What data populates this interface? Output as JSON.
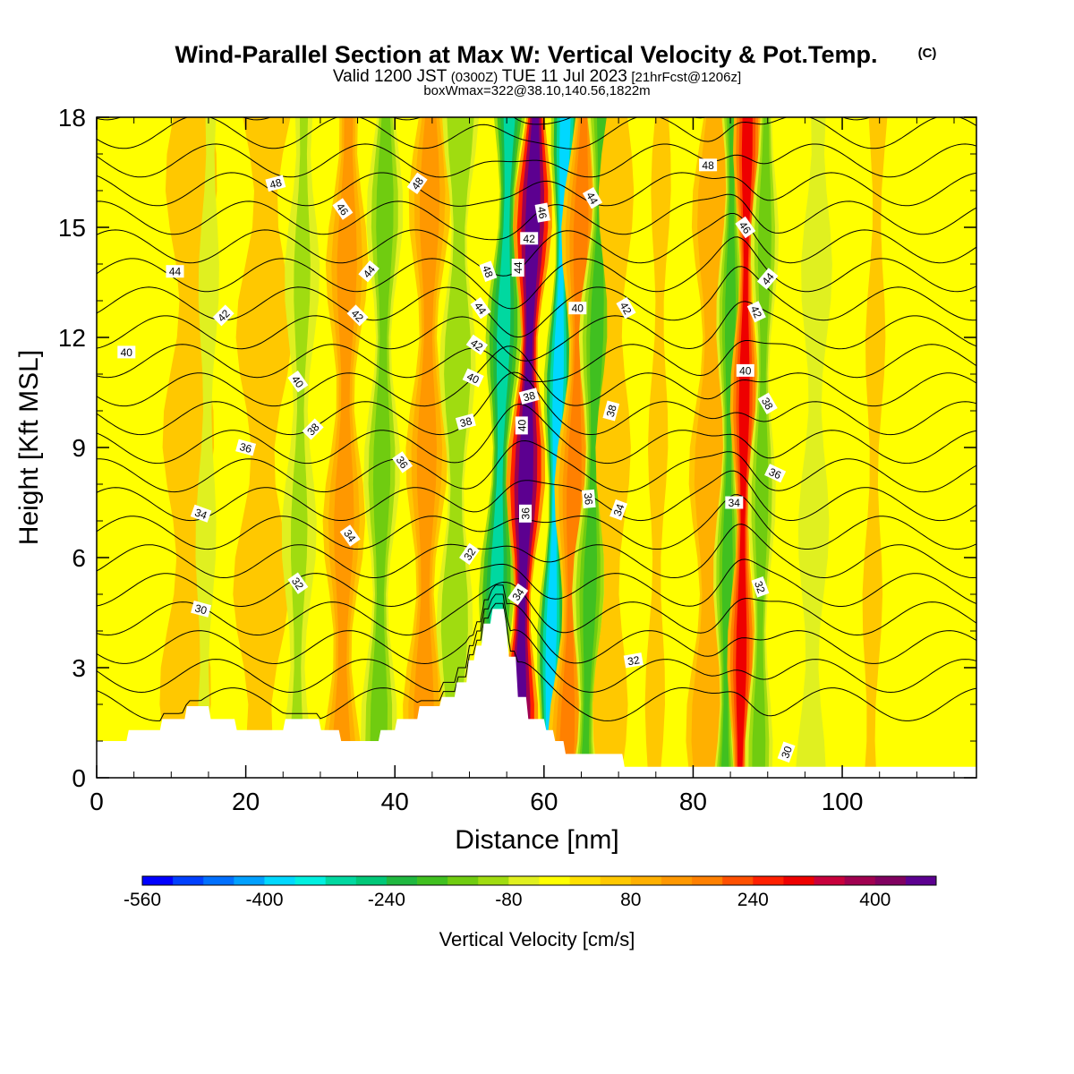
{
  "title": {
    "main": "Wind-Parallel Section at Max W: Vertical Velocity & Pot.Temp.",
    "mark": "(C)",
    "valid_a": "Valid 1200 JST",
    "valid_b": "(0300Z)",
    "valid_c": "TUE 11 Jul 2023",
    "valid_d": "[21hrFcst@1206z]",
    "box": "boxWmax=322@38.10,140.56,1822m"
  },
  "chart_data": {
    "type": "heatmap",
    "xlabel": "Distance [nm]",
    "ylabel": "Height [Kft MSL]",
    "xlim": [
      0,
      118
    ],
    "ylim": [
      0,
      18
    ],
    "x_ticks": [
      0,
      20,
      40,
      60,
      80,
      100
    ],
    "y_ticks": [
      0,
      3,
      6,
      9,
      12,
      15,
      18
    ],
    "colorbar": {
      "title": "Vertical Velocity [cm/s]",
      "range": [
        -560,
        480
      ],
      "tick_values": [
        -560,
        -400,
        -240,
        -80,
        80,
        240,
        400
      ],
      "tick_labels": [
        "-560",
        "-400",
        "-240",
        "-80",
        "80",
        "240",
        "400"
      ],
      "colors": [
        "#0000ff",
        "#0040ff",
        "#0070ff",
        "#00a0ff",
        "#00d8ff",
        "#00f0e0",
        "#00d8a0",
        "#00c878",
        "#20b840",
        "#40c020",
        "#70cc10",
        "#a0dc10",
        "#e0f020",
        "#ffff00",
        "#ffe000",
        "#ffc800",
        "#ffb000",
        "#ff9800",
        "#ff8000",
        "#ff5000",
        "#ff2000",
        "#ee0000",
        "#c8003c",
        "#a00050",
        "#800060",
        "#5c0090"
      ]
    },
    "velocity_features": [
      {
        "x": 12,
        "w": 5,
        "value": 70
      },
      {
        "x": 14.5,
        "w": 2,
        "value": -80
      },
      {
        "x": 22,
        "w": 4,
        "value": 90
      },
      {
        "x": 27,
        "w": 2.5,
        "value": -110
      },
      {
        "x": 33,
        "w": 3,
        "value": 150
      },
      {
        "x": 38,
        "w": 2.6,
        "value": -150
      },
      {
        "x": 44,
        "w": 3,
        "value": 140
      },
      {
        "x": 48,
        "w": 2.6,
        "value": -120
      },
      {
        "x": 53.5,
        "w": 2,
        "value": -330
      },
      {
        "x": 57,
        "w": 2.2,
        "value": 520
      },
      {
        "x": 61,
        "w": 1.6,
        "value": -420
      },
      {
        "x": 63.5,
        "w": 2.2,
        "value": 220
      },
      {
        "x": 66,
        "w": 2,
        "value": -220
      },
      {
        "x": 69,
        "w": 2.5,
        "value": 90
      },
      {
        "x": 75,
        "w": 3,
        "value": 60
      },
      {
        "x": 82,
        "w": 3,
        "value": 120
      },
      {
        "x": 84.5,
        "w": 1.6,
        "value": -200
      },
      {
        "x": 86.5,
        "w": 1.6,
        "value": 320
      },
      {
        "x": 89,
        "w": 2,
        "value": -150
      },
      {
        "x": 96,
        "w": 3,
        "value": -80
      },
      {
        "x": 104,
        "w": 3,
        "value": 60
      }
    ],
    "theta_contour_levels": [
      30,
      31,
      32,
      33,
      34,
      35,
      36,
      37,
      38,
      39,
      40,
      41,
      42,
      43,
      44,
      45,
      46,
      47,
      48,
      49,
      50,
      51
    ],
    "contour_labels": [
      {
        "text": "48",
        "x": 24,
        "y": 16.2,
        "angle": -15
      },
      {
        "text": "46",
        "x": 33,
        "y": 15.5,
        "angle": 55
      },
      {
        "text": "48",
        "x": 43,
        "y": 16.2,
        "angle": -55
      },
      {
        "text": "44",
        "x": 10.5,
        "y": 13.8,
        "angle": 0
      },
      {
        "text": "42",
        "x": 17,
        "y": 12.6,
        "angle": -45
      },
      {
        "text": "44",
        "x": 36.5,
        "y": 13.8,
        "angle": -50
      },
      {
        "text": "42",
        "x": 35,
        "y": 12.6,
        "angle": 45
      },
      {
        "text": "40",
        "x": 4,
        "y": 11.6,
        "angle": 0
      },
      {
        "text": "40",
        "x": 27,
        "y": 10.8,
        "angle": 55
      },
      {
        "text": "38",
        "x": 29,
        "y": 9.5,
        "angle": -45
      },
      {
        "text": "36",
        "x": 20,
        "y": 9,
        "angle": 15
      },
      {
        "text": "36",
        "x": 41,
        "y": 8.6,
        "angle": 55
      },
      {
        "text": "34",
        "x": 14,
        "y": 7.2,
        "angle": 20
      },
      {
        "text": "34",
        "x": 34,
        "y": 6.6,
        "angle": 55
      },
      {
        "text": "32",
        "x": 27,
        "y": 5.3,
        "angle": 55
      },
      {
        "text": "30",
        "x": 14,
        "y": 4.6,
        "angle": 15
      },
      {
        "text": "32",
        "x": 50,
        "y": 6.1,
        "angle": -55
      },
      {
        "text": "48",
        "x": 52.5,
        "y": 13.8,
        "angle": 70
      },
      {
        "text": "44",
        "x": 51.5,
        "y": 12.8,
        "angle": 55
      },
      {
        "text": "42",
        "x": 51,
        "y": 11.8,
        "angle": 35
      },
      {
        "text": "40",
        "x": 50.5,
        "y": 10.9,
        "angle": 25
      },
      {
        "text": "38",
        "x": 49.5,
        "y": 9.7,
        "angle": -15
      },
      {
        "text": "44",
        "x": 56.5,
        "y": 13.9,
        "angle": -90
      },
      {
        "text": "42",
        "x": 58,
        "y": 14.7,
        "angle": 0
      },
      {
        "text": "46",
        "x": 59.8,
        "y": 15.4,
        "angle": 80
      },
      {
        "text": "44",
        "x": 66.5,
        "y": 15.8,
        "angle": 60
      },
      {
        "text": "38",
        "x": 58,
        "y": 10.4,
        "angle": -15
      },
      {
        "text": "40",
        "x": 57,
        "y": 9.6,
        "angle": -90
      },
      {
        "text": "36",
        "x": 57.5,
        "y": 7.2,
        "angle": -90
      },
      {
        "text": "34",
        "x": 56.5,
        "y": 5,
        "angle": -55
      },
      {
        "text": "40",
        "x": 64.5,
        "y": 12.8,
        "angle": 0
      },
      {
        "text": "42",
        "x": 71,
        "y": 12.8,
        "angle": 60
      },
      {
        "text": "38",
        "x": 69,
        "y": 10,
        "angle": -75
      },
      {
        "text": "36",
        "x": 66,
        "y": 7.6,
        "angle": 85
      },
      {
        "text": "34",
        "x": 70,
        "y": 7.3,
        "angle": -70
      },
      {
        "text": "32",
        "x": 72,
        "y": 3.2,
        "angle": -10
      },
      {
        "text": "48",
        "x": 82,
        "y": 16.7,
        "angle": 0
      },
      {
        "text": "46",
        "x": 87,
        "y": 15,
        "angle": 55
      },
      {
        "text": "44",
        "x": 90,
        "y": 13.6,
        "angle": -50
      },
      {
        "text": "42",
        "x": 88.5,
        "y": 12.7,
        "angle": 65
      },
      {
        "text": "40",
        "x": 87,
        "y": 11.1,
        "angle": 0
      },
      {
        "text": "38",
        "x": 90,
        "y": 10.2,
        "angle": 60
      },
      {
        "text": "36",
        "x": 91,
        "y": 8.3,
        "angle": 25
      },
      {
        "text": "34",
        "x": 85.5,
        "y": 7.5,
        "angle": 0
      },
      {
        "text": "32",
        "x": 89,
        "y": 5.2,
        "angle": 70
      },
      {
        "text": "30",
        "x": 92.5,
        "y": 0.7,
        "angle": -70
      }
    ],
    "terrain_profile": [
      [
        0,
        1.0
      ],
      [
        4,
        1.0
      ],
      [
        4.3,
        1.3
      ],
      [
        8.5,
        1.3
      ],
      [
        8.8,
        1.6
      ],
      [
        11.8,
        1.6
      ],
      [
        12.1,
        1.95
      ],
      [
        15,
        1.95
      ],
      [
        15.3,
        1.6
      ],
      [
        18.5,
        1.6
      ],
      [
        18.8,
        1.3
      ],
      [
        25,
        1.3
      ],
      [
        25.3,
        1.6
      ],
      [
        29.8,
        1.6
      ],
      [
        30.1,
        1.3
      ],
      [
        32.5,
        1.3
      ],
      [
        32.8,
        1.0
      ],
      [
        37.8,
        1.0
      ],
      [
        38.1,
        1.3
      ],
      [
        40,
        1.3
      ],
      [
        40.3,
        1.6
      ],
      [
        43,
        1.6
      ],
      [
        43.3,
        1.95
      ],
      [
        46,
        1.95
      ],
      [
        46.3,
        2.2
      ],
      [
        48,
        2.2
      ],
      [
        48.3,
        2.6
      ],
      [
        49.6,
        2.6
      ],
      [
        49.9,
        3.2
      ],
      [
        50.6,
        3.2
      ],
      [
        50.9,
        3.6
      ],
      [
        51.6,
        3.6
      ],
      [
        51.9,
        4.2
      ],
      [
        52.8,
        4.2
      ],
      [
        53.1,
        4.6
      ],
      [
        54.6,
        4.6
      ],
      [
        54.9,
        4.2
      ],
      [
        55.3,
        3.3
      ],
      [
        56.2,
        3.3
      ],
      [
        56.5,
        2.2
      ],
      [
        57.6,
        2.2
      ],
      [
        57.9,
        1.6
      ],
      [
        60,
        1.6
      ],
      [
        60.3,
        1.3
      ],
      [
        61.2,
        1.3
      ],
      [
        61.5,
        1.0
      ],
      [
        62.6,
        1.0
      ],
      [
        62.9,
        0.65
      ],
      [
        70.5,
        0.65
      ],
      [
        70.8,
        0.3
      ],
      [
        118,
        0.3
      ]
    ]
  }
}
